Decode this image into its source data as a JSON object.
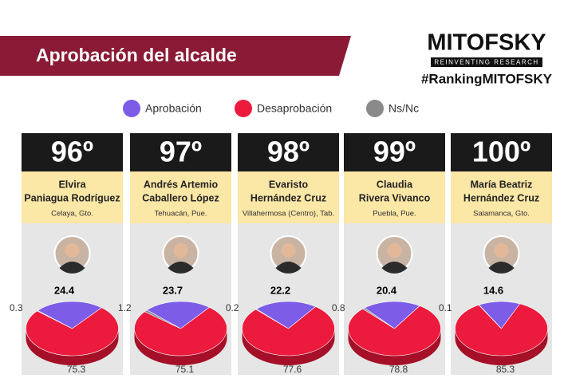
{
  "header": {
    "title": "Aprobación del alcalde",
    "brand": "MITOFSKY",
    "tagline": "REINVENTING RESEARCH",
    "hashtag": "#RankingMITOFSKY"
  },
  "legend": {
    "categories": [
      "Aprobación",
      "Desaprobación",
      "Ns/Nc"
    ],
    "colors": [
      "#7d5ce8",
      "#ec1a3c",
      "#8a8a8a"
    ]
  },
  "chart_data": [
    {
      "type": "pie",
      "rank": "96º",
      "name": [
        "Elvira",
        "Paniagua Rodríguez"
      ],
      "location": "Celaya, Gto.",
      "values": [
        24.4,
        75.3,
        0.3
      ]
    },
    {
      "type": "pie",
      "rank": "97º",
      "name": [
        "Andrés Artemio",
        "Caballero López"
      ],
      "location": "Tehuacán, Pue.",
      "values": [
        23.7,
        75.1,
        1.2
      ]
    },
    {
      "type": "pie",
      "rank": "98º",
      "name": [
        "Evaristo",
        "Hernández Cruz"
      ],
      "location": "Villahermosa (Centro), Tab.",
      "values": [
        22.2,
        77.6,
        0.2
      ]
    },
    {
      "type": "pie",
      "rank": "99º",
      "name": [
        "Claudia",
        "Rivera Vivanco"
      ],
      "location": "Puebla, Pue.",
      "values": [
        20.4,
        78.8,
        0.8
      ]
    },
    {
      "type": "pie",
      "rank": "100º",
      "name": [
        "María Beatriz",
        "Hernández Cruz"
      ],
      "location": "Salamanca, Gto.",
      "values": [
        14.6,
        85.3,
        0.1
      ]
    }
  ]
}
